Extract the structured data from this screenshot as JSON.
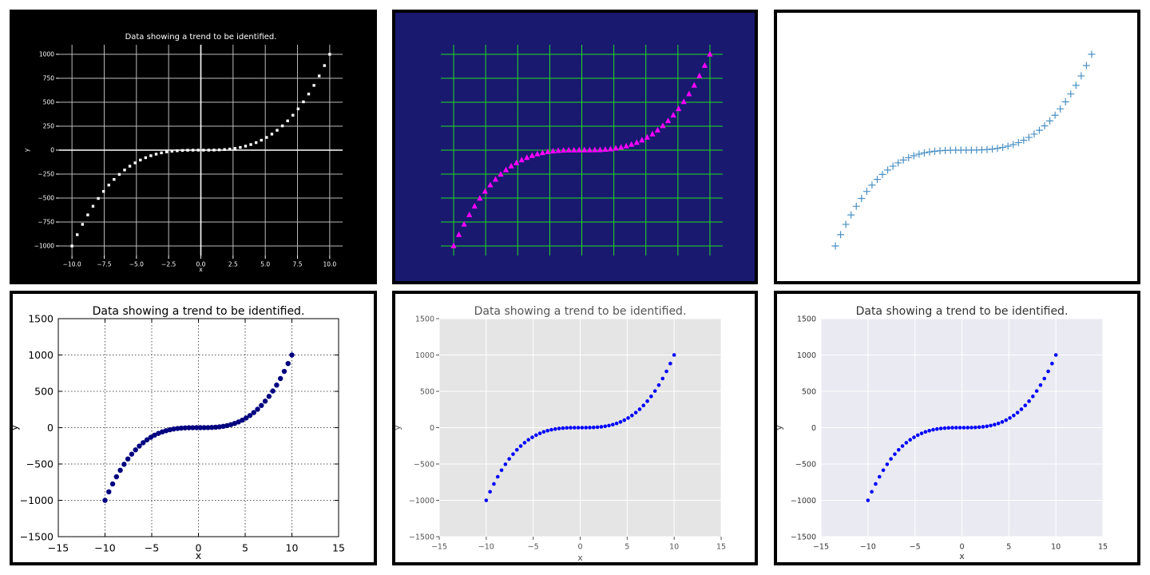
{
  "chart_data": [
    {
      "type": "scatter",
      "title": "Data showing a trend to be identified.",
      "xlabel": "x",
      "ylabel": "y",
      "xlim": [
        -11,
        11
      ],
      "ylim": [
        -1100,
        1100
      ],
      "xticks": [
        -10.0,
        -7.5,
        -5.0,
        -2.5,
        0.0,
        2.5,
        5.0,
        7.5,
        10.0
      ],
      "xtick_labels": [
        "−10.0",
        "−7.5",
        "−5.0",
        "−2.5",
        "0.0",
        "2.5",
        "5.0",
        "7.5",
        "10.0"
      ],
      "yticks": [
        -1000,
        -750,
        -500,
        -250,
        0,
        250,
        500,
        750,
        1000
      ],
      "ytick_labels": [
        "−1000",
        "−750",
        "−500",
        "−250",
        "0",
        "250",
        "500",
        "750",
        "1000"
      ],
      "grid": true,
      "marker": "square",
      "colors": {
        "background": "#000000",
        "plot": "#000000",
        "marker": "#ffffff",
        "grid": "#bbbbbb",
        "text": "#ffffff",
        "zero_line": "#ffffff"
      },
      "x_range": [
        -10,
        10
      ],
      "point_count": 50,
      "function": "y = x^3"
    },
    {
      "type": "scatter",
      "title": "",
      "xlabel": "",
      "ylabel": "",
      "xlim": [
        -11,
        11
      ],
      "ylim": [
        -1100,
        1100
      ],
      "xticks": [
        -10,
        -7.5,
        -5,
        -2.5,
        0,
        2.5,
        5,
        7.5,
        10
      ],
      "yticks": [
        -1000,
        -750,
        -500,
        -250,
        0,
        250,
        500,
        750,
        1000
      ],
      "grid": true,
      "marker": "triangle",
      "colors": {
        "background": "#191970",
        "plot": "#191970",
        "marker": "#ff00ff",
        "grid": "#22dd22"
      },
      "x_range": [
        -10,
        10
      ],
      "point_count": 50,
      "function": "y = x^3"
    },
    {
      "type": "scatter",
      "title": "",
      "xlabel": "",
      "ylabel": "",
      "xlim": [
        -11,
        11
      ],
      "ylim": [
        -1100,
        1100
      ],
      "grid": false,
      "marker": "plus",
      "colors": {
        "background": "#ffffff",
        "marker": "#4a90c4"
      },
      "x_range": [
        -10,
        10
      ],
      "point_count": 50,
      "function": "y = x^3"
    },
    {
      "type": "scatter",
      "title": "Data showing a trend to be identified.",
      "xlabel": "x",
      "ylabel": "y",
      "xlim": [
        -15,
        15
      ],
      "ylim": [
        -1500,
        1500
      ],
      "xticks": [
        -15,
        -10,
        -5,
        0,
        5,
        10,
        15
      ],
      "xtick_labels": [
        "−15",
        "−10",
        "−5",
        "0",
        "5",
        "10",
        "15"
      ],
      "yticks": [
        -1500,
        -1000,
        -500,
        0,
        500,
        1000,
        1500
      ],
      "ytick_labels": [
        "−1500",
        "−1000",
        "−500",
        "0",
        "500",
        "1000",
        "1500"
      ],
      "grid": true,
      "grid_style": "dotted",
      "marker": "circle",
      "colors": {
        "background": "#ffffff",
        "plot": "#ffffff",
        "marker": "#000080",
        "grid": "#555555",
        "text": "#000000"
      },
      "x_range": [
        -10,
        10
      ],
      "point_count": 50,
      "function": "y = x^3"
    },
    {
      "type": "scatter",
      "title": "Data showing a trend to be identified.",
      "xlabel": "x",
      "ylabel": "y",
      "xlim": [
        -15,
        15
      ],
      "ylim": [
        -1500,
        1500
      ],
      "xticks": [
        -15,
        -10,
        -5,
        0,
        5,
        10,
        15
      ],
      "xtick_labels": [
        "−15",
        "−10",
        "−5",
        "0",
        "5",
        "10",
        "15"
      ],
      "yticks": [
        -1500,
        -1000,
        -500,
        0,
        500,
        1000,
        1500
      ],
      "ytick_labels": [
        "−1500",
        "−1000",
        "−500",
        "0",
        "500",
        "1000",
        "1500"
      ],
      "grid": true,
      "marker": "circle",
      "colors": {
        "background": "#ffffff",
        "plot": "#e5e5e5",
        "marker": "#0000ff",
        "grid": "#ffffff",
        "text": "#555555"
      },
      "x_range": [
        -10,
        10
      ],
      "point_count": 50,
      "function": "y = x^3"
    },
    {
      "type": "scatter",
      "title": "Data showing a trend to be identified.",
      "xlabel": "x",
      "ylabel": "y",
      "xlim": [
        -15,
        15
      ],
      "ylim": [
        -1500,
        1500
      ],
      "xticks": [
        -15,
        -10,
        -5,
        0,
        5,
        10,
        15
      ],
      "xtick_labels": [
        "−15",
        "−10",
        "−5",
        "0",
        "5",
        "10",
        "15"
      ],
      "yticks": [
        -1500,
        -1000,
        -500,
        0,
        500,
        1000,
        1500
      ],
      "ytick_labels": [
        "−1500",
        "−1000",
        "−500",
        "0",
        "500",
        "1000",
        "1500"
      ],
      "grid": true,
      "marker": "circle",
      "colors": {
        "background": "#ffffff",
        "plot": "#eaeaf2",
        "marker": "#0000ff",
        "grid": "#ffffff",
        "text": "#333333"
      },
      "x_range": [
        -10,
        10
      ],
      "point_count": 50,
      "function": "y = x^3"
    }
  ]
}
